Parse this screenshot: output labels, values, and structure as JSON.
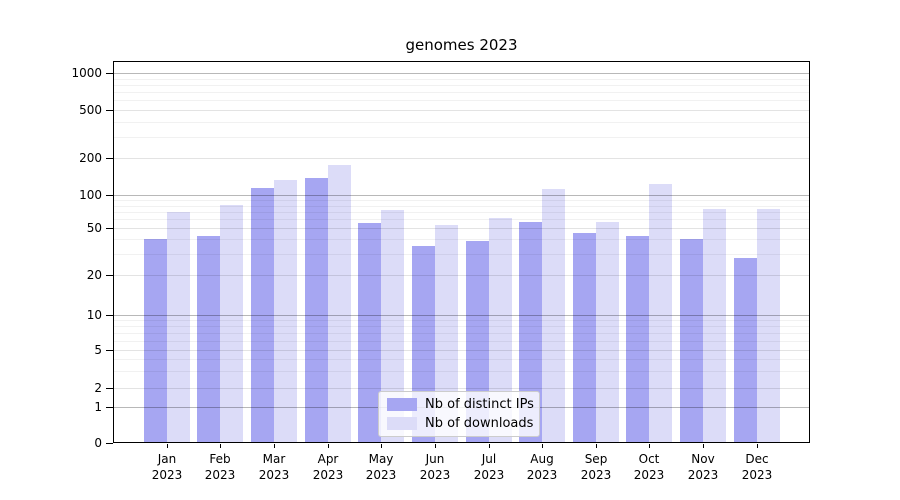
{
  "chart_data": {
    "type": "bar",
    "title": "genomes 2023",
    "categories": [
      "Jan 2023",
      "Feb 2023",
      "Mar 2023",
      "Apr 2023",
      "May 2023",
      "Jun 2023",
      "Jul 2023",
      "Aug 2023",
      "Sep 2023",
      "Oct 2023",
      "Nov 2023",
      "Dec 2023"
    ],
    "series": [
      {
        "name": "Nb of distinct IPs",
        "color": "#a6a6f2",
        "values": [
          40,
          43,
          114,
          138,
          56,
          35,
          39,
          57,
          45,
          43,
          40,
          28
        ]
      },
      {
        "name": "Nb of downloads",
        "color": "#dcdcf8",
        "values": [
          70,
          81,
          132,
          175,
          73,
          53,
          62,
          112,
          57,
          123,
          75,
          75
        ]
      }
    ],
    "xlabel": "",
    "ylabel": "",
    "yscale": "symlog",
    "y_ticks": [
      0,
      1,
      2,
      5,
      10,
      20,
      50,
      100,
      200,
      500,
      1000
    ],
    "ylim": [
      0,
      1250
    ],
    "grid": "horizontal major + minor",
    "legend_position": "lower center",
    "background": "#ffffff",
    "spine_color": "#000000"
  }
}
